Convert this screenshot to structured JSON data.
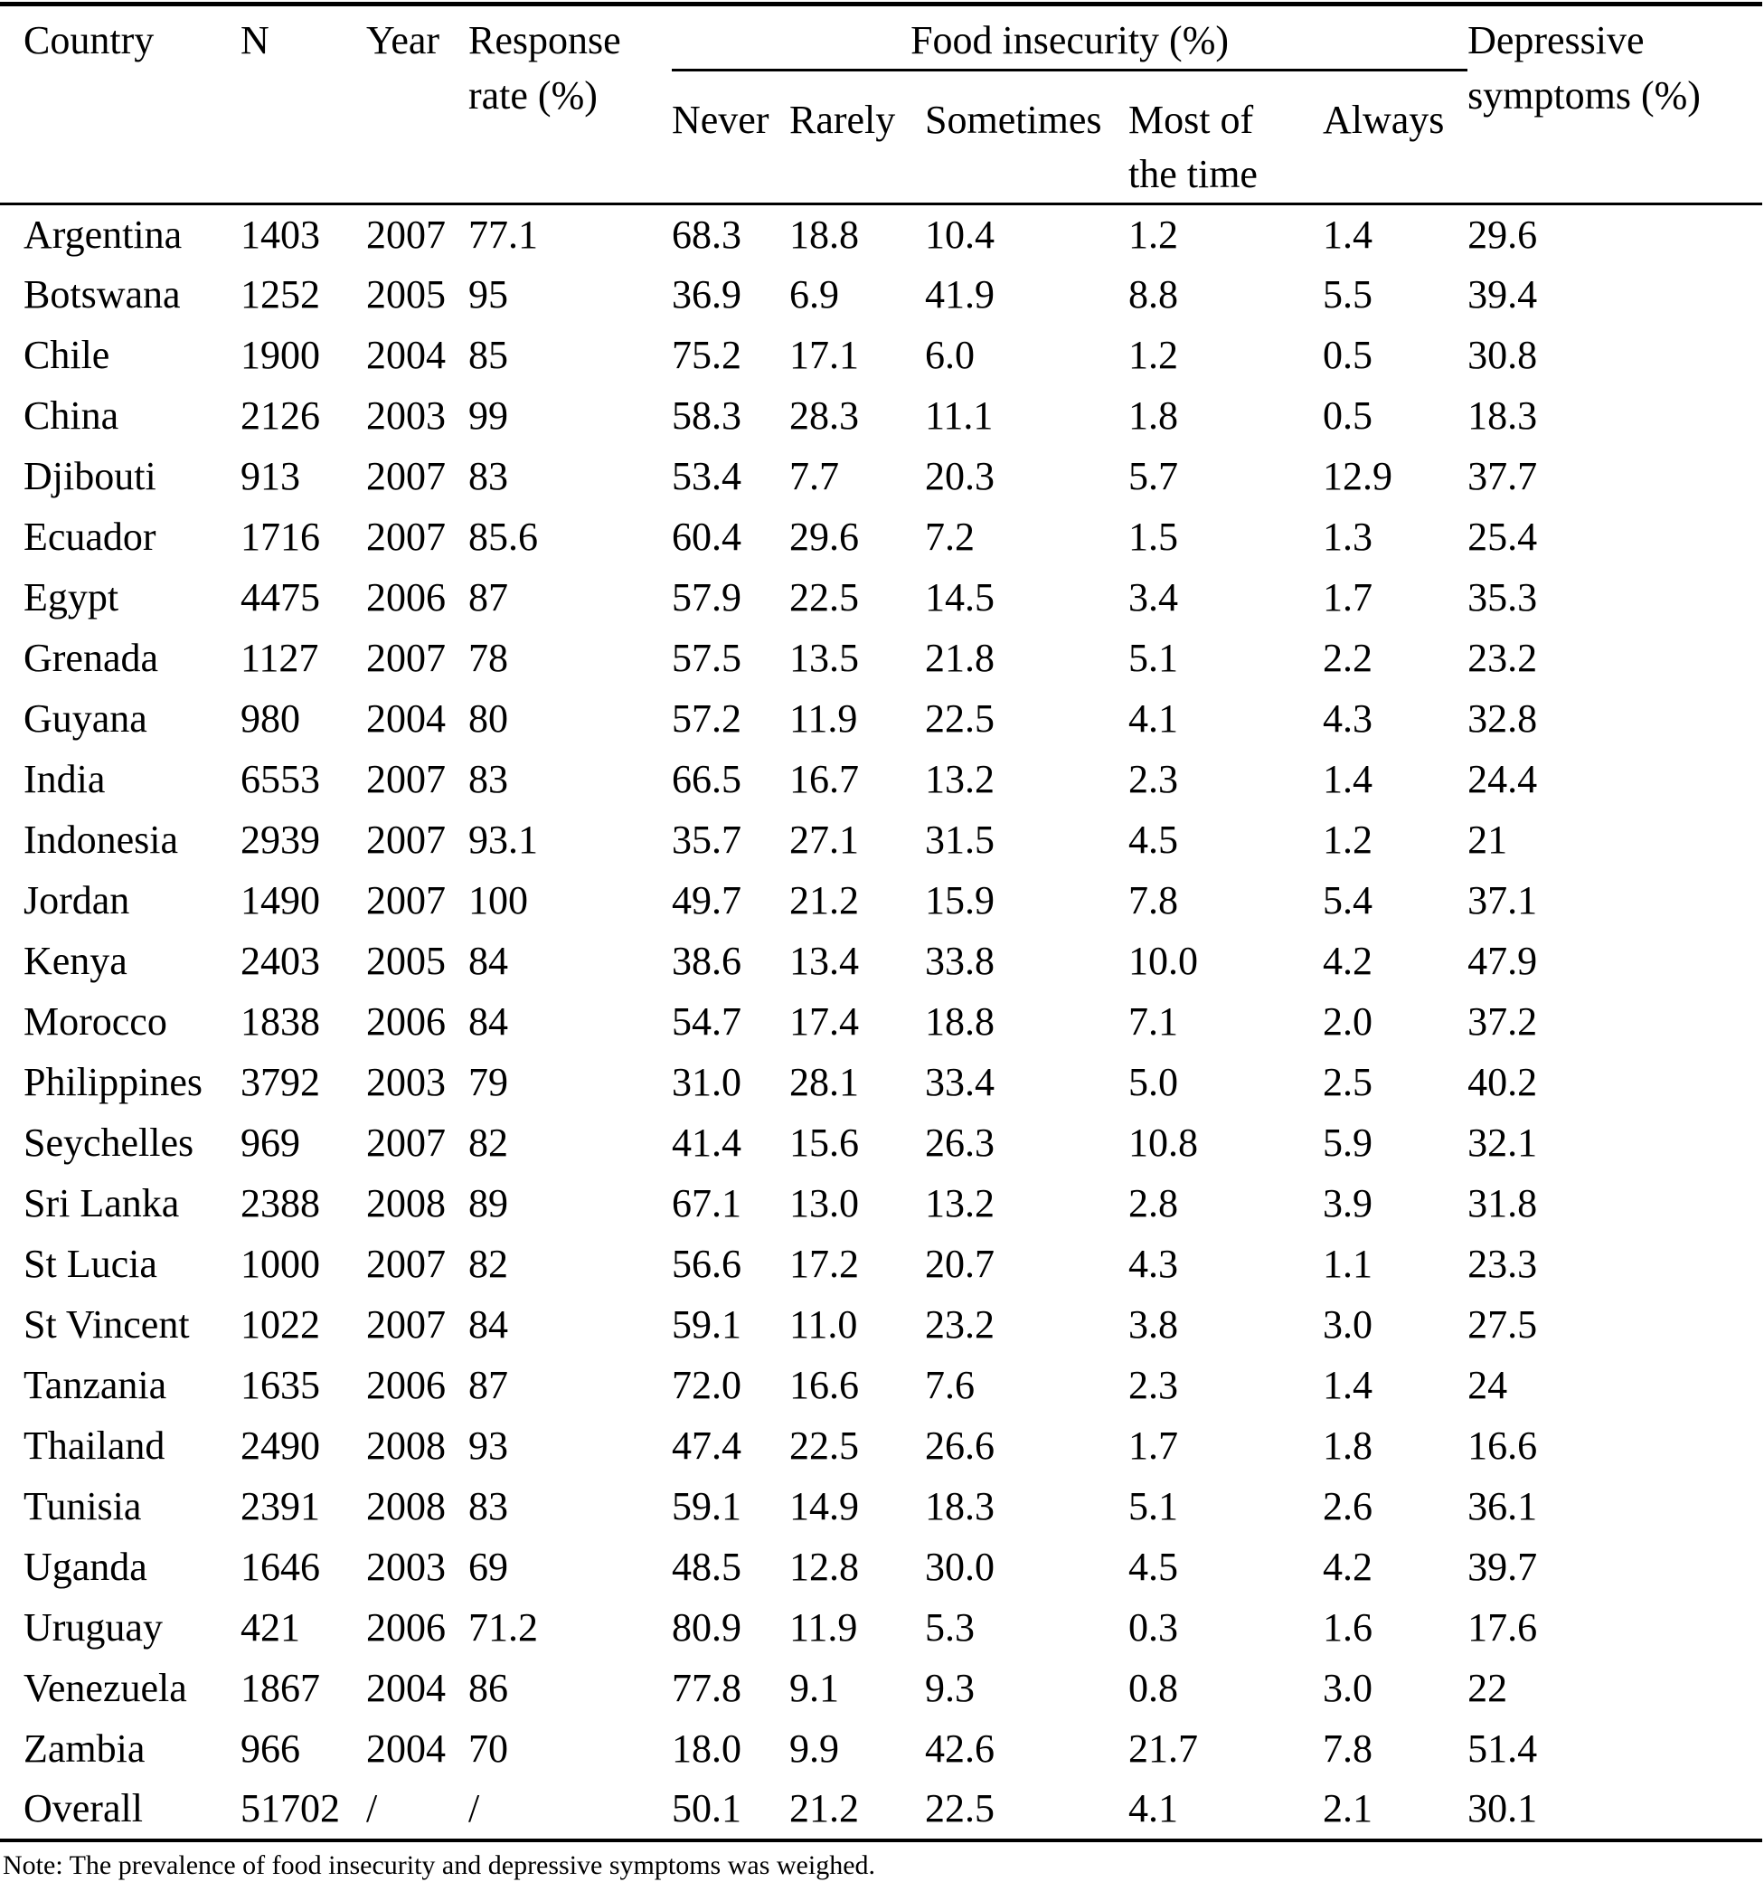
{
  "page": {
    "background_color": "#ffffff",
    "text_color": "#000000"
  },
  "table": {
    "header": {
      "country": "Country",
      "n": "N",
      "year": "Year",
      "response_rate": "Response\nrate (%)",
      "food_insecurity_group": "Food insecurity (%)",
      "never": "Never",
      "rarely": "Rarely",
      "sometimes": "Sometimes",
      "most_of_the_time": "Most of\nthe time",
      "always": "Always",
      "depressive_symptoms": "Depressive\nsymptoms (%)"
    },
    "column_ids": [
      "country",
      "n",
      "year",
      "response-rate",
      "never",
      "rarely",
      "sometimes",
      "most-of-the-time",
      "always",
      "depressive-symptoms"
    ],
    "rows": [
      [
        "Argentina",
        "1403",
        "2007",
        "77.1",
        "68.3",
        "18.8",
        "10.4",
        "1.2",
        "1.4",
        "29.6"
      ],
      [
        "Botswana",
        "1252",
        "2005",
        "95",
        "36.9",
        "6.9",
        "41.9",
        "8.8",
        "5.5",
        "39.4"
      ],
      [
        "Chile",
        "1900",
        "2004",
        "85",
        "75.2",
        "17.1",
        "6.0",
        "1.2",
        "0.5",
        "30.8"
      ],
      [
        "China",
        "2126",
        "2003",
        "99",
        "58.3",
        "28.3",
        "11.1",
        "1.8",
        "0.5",
        "18.3"
      ],
      [
        "Djibouti",
        "913",
        "2007",
        "83",
        "53.4",
        "7.7",
        "20.3",
        "5.7",
        "12.9",
        "37.7"
      ],
      [
        "Ecuador",
        "1716",
        "2007",
        "85.6",
        "60.4",
        "29.6",
        "7.2",
        "1.5",
        "1.3",
        "25.4"
      ],
      [
        "Egypt",
        "4475",
        "2006",
        "87",
        "57.9",
        "22.5",
        "14.5",
        "3.4",
        "1.7",
        "35.3"
      ],
      [
        "Grenada",
        "1127",
        "2007",
        "78",
        "57.5",
        "13.5",
        "21.8",
        "5.1",
        "2.2",
        "23.2"
      ],
      [
        "Guyana",
        "980",
        "2004",
        "80",
        "57.2",
        "11.9",
        "22.5",
        "4.1",
        "4.3",
        "32.8"
      ],
      [
        "India",
        "6553",
        "2007",
        "83",
        "66.5",
        "16.7",
        "13.2",
        "2.3",
        "1.4",
        "24.4"
      ],
      [
        "Indonesia",
        "2939",
        "2007",
        "93.1",
        "35.7",
        "27.1",
        "31.5",
        "4.5",
        "1.2",
        "21"
      ],
      [
        "Jordan",
        "1490",
        "2007",
        "100",
        "49.7",
        "21.2",
        "15.9",
        "7.8",
        "5.4",
        "37.1"
      ],
      [
        "Kenya",
        "2403",
        "2005",
        "84",
        "38.6",
        "13.4",
        "33.8",
        "10.0",
        "4.2",
        "47.9"
      ],
      [
        "Morocco",
        "1838",
        "2006",
        "84",
        "54.7",
        "17.4",
        "18.8",
        "7.1",
        "2.0",
        "37.2"
      ],
      [
        "Philippines",
        "3792",
        "2003",
        "79",
        "31.0",
        "28.1",
        "33.4",
        "5.0",
        "2.5",
        "40.2"
      ],
      [
        "Seychelles",
        "969",
        "2007",
        "82",
        "41.4",
        "15.6",
        "26.3",
        "10.8",
        "5.9",
        "32.1"
      ],
      [
        "Sri Lanka",
        "2388",
        "2008",
        "89",
        "67.1",
        "13.0",
        "13.2",
        "2.8",
        "3.9",
        "31.8"
      ],
      [
        "St Lucia",
        "1000",
        "2007",
        "82",
        "56.6",
        "17.2",
        "20.7",
        "4.3",
        "1.1",
        "23.3"
      ],
      [
        "St Vincent",
        "1022",
        "2007",
        "84",
        "59.1",
        "11.0",
        "23.2",
        "3.8",
        "3.0",
        "27.5"
      ],
      [
        "Tanzania",
        "1635",
        "2006",
        "87",
        "72.0",
        "16.6",
        "7.6",
        "2.3",
        "1.4",
        "24"
      ],
      [
        "Thailand",
        "2490",
        "2008",
        "93",
        "47.4",
        "22.5",
        "26.6",
        "1.7",
        "1.8",
        "16.6"
      ],
      [
        "Tunisia",
        "2391",
        "2008",
        "83",
        "59.1",
        "14.9",
        "18.3",
        "5.1",
        "2.6",
        "36.1"
      ],
      [
        "Uganda",
        "1646",
        "2003",
        "69",
        "48.5",
        "12.8",
        "30.0",
        "4.5",
        "4.2",
        "39.7"
      ],
      [
        "Uruguay",
        "421",
        "2006",
        "71.2",
        "80.9",
        "11.9",
        "5.3",
        "0.3",
        "1.6",
        "17.6"
      ],
      [
        "Venezuela",
        "1867",
        "2004",
        "86",
        "77.8",
        "9.1",
        "9.3",
        "0.8",
        "3.0",
        "22"
      ],
      [
        "Zambia",
        "966",
        "2004",
        "70",
        "18.0",
        "9.9",
        "42.6",
        "21.7",
        "7.8",
        "51.4"
      ],
      [
        "Overall",
        "51702",
        "/",
        "/",
        "50.1",
        "21.2",
        "22.5",
        "4.1",
        "2.1",
        "30.1"
      ]
    ]
  },
  "note": "Note: The prevalence of food insecurity and depressive symptoms was weighed."
}
